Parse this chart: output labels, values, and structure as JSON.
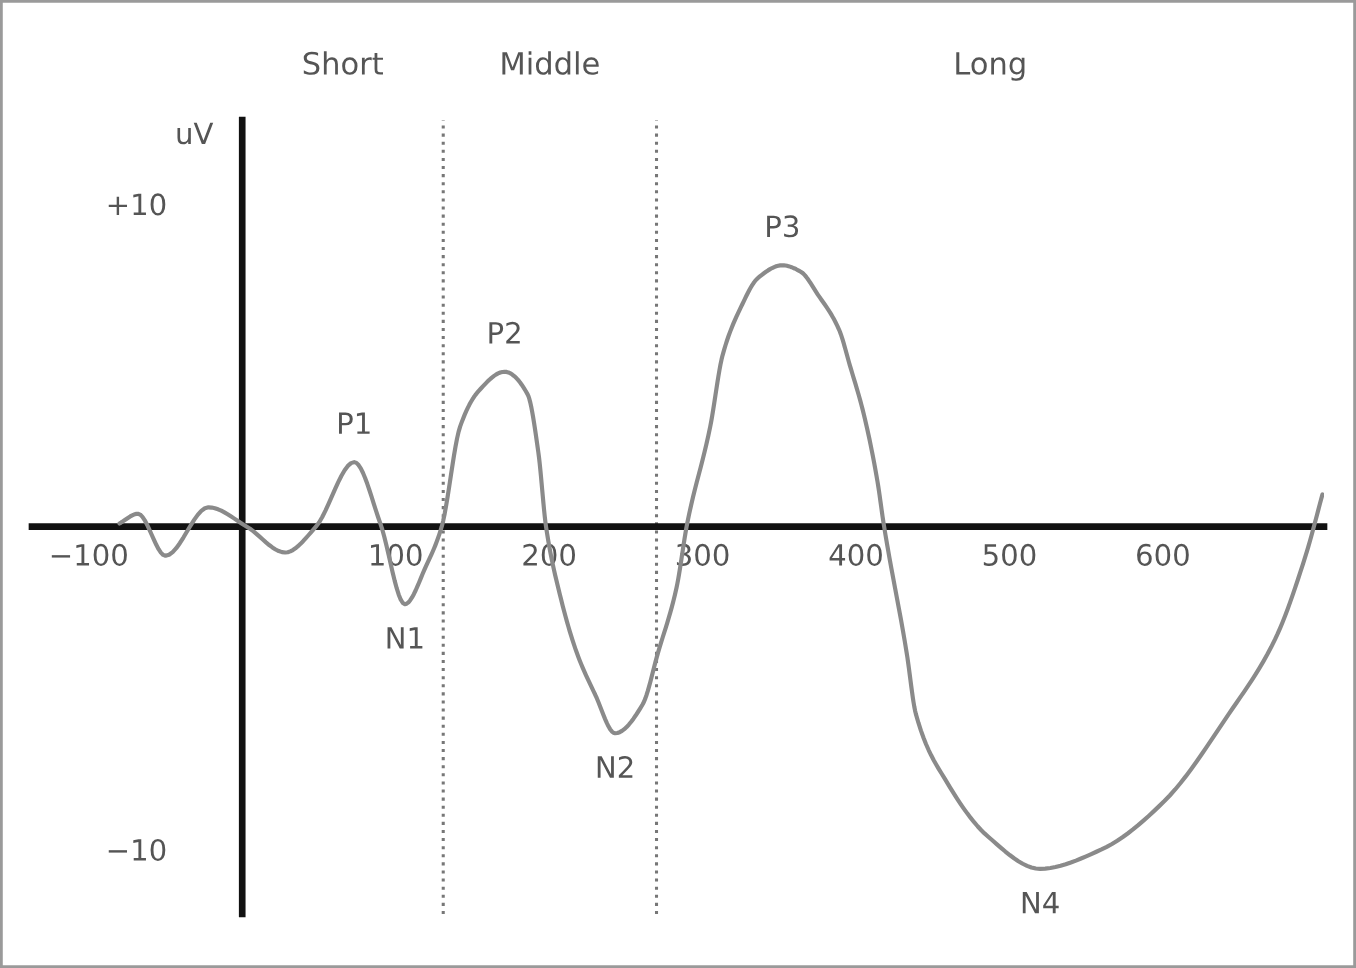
{
  "chart_data": {
    "type": "line",
    "ylabel": "uV",
    "x": [
      -80,
      -68,
      -50,
      -22,
      3,
      28,
      48,
      73,
      90,
      106,
      120,
      130,
      142,
      154,
      171,
      186,
      193,
      198,
      207,
      218,
      230,
      243,
      261,
      271,
      283,
      290,
      305,
      313,
      325,
      336,
      352,
      364,
      375,
      389,
      396,
      405,
      414,
      418,
      433,
      439,
      459,
      486,
      520,
      560,
      601,
      643,
      673,
      693,
      704
    ],
    "values": [
      0.1,
      0.4,
      -0.9,
      0.6,
      0,
      -0.8,
      0,
      2.0,
      0.1,
      -2.4,
      -1.2,
      0,
      3.1,
      4.2,
      4.8,
      4.1,
      2.3,
      0,
      -2.1,
      -3.9,
      -5.2,
      -6.4,
      -5.5,
      -3.9,
      -1.9,
      0.1,
      3.1,
      5.3,
      6.8,
      7.7,
      8.1,
      7.9,
      7.2,
      6.1,
      5.0,
      3.5,
      1.4,
      0.1,
      -3.9,
      -5.8,
      -7.9,
      -9.6,
      -10.6,
      -10.0,
      -8.5,
      -5.8,
      -3.5,
      -0.9,
      1.0
    ],
    "color": "#8a8a8a",
    "xlim": [
      -137,
      705
    ],
    "ylim": [
      -12,
      12.6
    ],
    "xticks": [
      {
        "value": -100,
        "label": "−100"
      },
      100,
      200,
      300,
      400,
      500,
      600
    ],
    "yticks": [
      {
        "value": 10,
        "label": "+10"
      },
      {
        "value": -10,
        "label": "−10"
      }
    ],
    "ref_lines": [
      {
        "axis": "x",
        "value": 131,
        "color": "#777777",
        "line_style": "dotted"
      },
      {
        "axis": "x",
        "value": 270,
        "color": "#777777",
        "line_style": "dotted"
      }
    ],
    "annotations": [
      "Short",
      "Middle",
      "Long",
      {
        "text": "P1",
        "x": 73,
        "y": 2.0
      },
      {
        "text": "N1",
        "x": 106,
        "y": -2.4
      },
      {
        "text": "P2",
        "x": 171,
        "y": 4.8
      },
      {
        "text": "N2",
        "x": 243,
        "y": -6.4
      },
      {
        "text": "P3",
        "x": 352,
        "y": 8.1
      },
      {
        "text": "N4",
        "x": 520,
        "y": -10.6
      }
    ]
  }
}
